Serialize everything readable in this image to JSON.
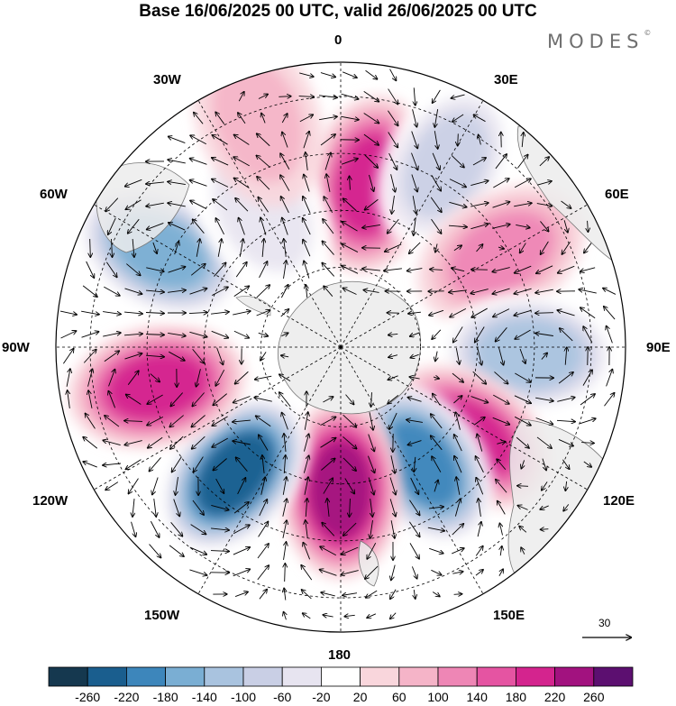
{
  "title": "Base 16/06/2025 00 UTC, valid 26/06/2025 00 UTC",
  "brand": "MODES",
  "brand_mark": "©",
  "longitude_labels": {
    "top": "0",
    "e30": "30E",
    "e60": "60E",
    "e90": "90E",
    "e120": "120E",
    "e150": "150E",
    "bottom": "180",
    "w150": "150W",
    "w120": "120W",
    "w90": "90W",
    "w60": "60W",
    "w30": "30W"
  },
  "vector_reference": "30",
  "colorbar": {
    "colors": [
      "#15384f",
      "#1a5e8e",
      "#3d86bb",
      "#7aaed3",
      "#a9c3df",
      "#c9cfe5",
      "#e7e4f0",
      "#ffffff",
      "#f9d6dc",
      "#f5b4c8",
      "#ee86b5",
      "#e554a2",
      "#d4248e",
      "#a2127f",
      "#5c0f70"
    ],
    "ticks": [
      "-260",
      "-220",
      "-180",
      "-140",
      "-100",
      "-60",
      "-20",
      "20",
      "60",
      "100",
      "140",
      "180",
      "220",
      "260"
    ]
  },
  "anomaly_centers": [
    {
      "lon": 10,
      "lat_ring": 0.58,
      "value": 200
    },
    {
      "lon": 30,
      "lat_ring": 0.74,
      "value": -120
    },
    {
      "lon": 60,
      "lat_ring": 0.65,
      "value": 100
    },
    {
      "lon": 92,
      "lat_ring": 0.66,
      "value": -160
    },
    {
      "lon": 125,
      "lat_ring": 0.55,
      "value": 170
    },
    {
      "lon": 145,
      "lat_ring": 0.5,
      "value": -240
    },
    {
      "lon": 180,
      "lat_ring": 0.5,
      "value": 210
    },
    {
      "lon": -140,
      "lat_ring": 0.58,
      "value": -260
    },
    {
      "lon": -102,
      "lat_ring": 0.66,
      "value": 180
    },
    {
      "lon": -62,
      "lat_ring": 0.72,
      "value": -200
    },
    {
      "lon": -30,
      "lat_ring": 0.55,
      "value": -60
    },
    {
      "lon": -20,
      "lat_ring": 0.85,
      "value": 60
    }
  ]
}
